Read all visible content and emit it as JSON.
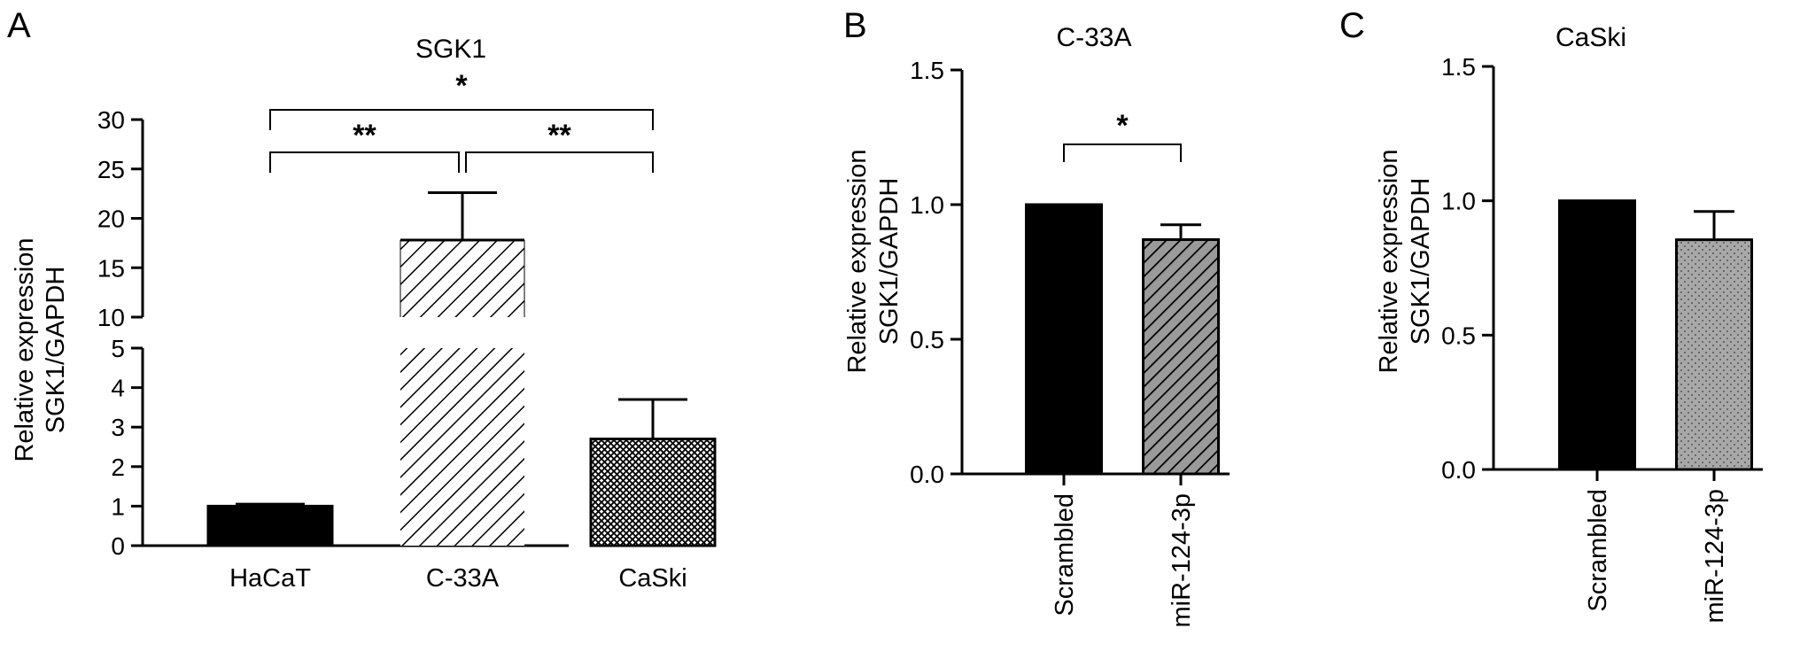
{
  "chart_data": [
    {
      "panel": "A",
      "type": "bar",
      "title": "SGK1",
      "ylabel": [
        "Relative expression",
        "SGK1/GAPDH"
      ],
      "categories": [
        "HaCaT",
        "C-33A",
        "CaSki"
      ],
      "values": [
        1.0,
        17.8,
        2.7
      ],
      "errors": [
        0.05,
        4.8,
        1.0
      ],
      "patterns": [
        "solid-black",
        "diagonal-hatch",
        "crosshatch"
      ],
      "y_axis_break": {
        "lower": [
          0,
          5
        ],
        "upper": [
          10,
          30
        ]
      },
      "yticks_lower": [
        0,
        1,
        2,
        3,
        4,
        5
      ],
      "yticks_upper": [
        10,
        15,
        20,
        25,
        30
      ],
      "grid": false,
      "significance": [
        {
          "from": "HaCaT",
          "to": "C-33A",
          "label": "**"
        },
        {
          "from": "C-33A",
          "to": "CaSki",
          "label": "**"
        },
        {
          "from": "HaCaT",
          "to": "CaSki",
          "label": "*"
        }
      ]
    },
    {
      "panel": "B",
      "type": "bar",
      "title": "C-33A",
      "ylabel": [
        "Relative expression",
        "SGK1/GAPDH"
      ],
      "categories": [
        "Scrambled",
        "miR-124-3p"
      ],
      "values": [
        1.0,
        0.87
      ],
      "errors": [
        0.003,
        0.055
      ],
      "patterns": [
        "solid-black",
        "dense-diagonal-gray"
      ],
      "ylim": [
        0,
        1.5
      ],
      "yticks": [
        "0.0",
        "0.5",
        "1.0",
        "1.5"
      ],
      "grid": false,
      "significance": [
        {
          "from": "Scrambled",
          "to": "miR-124-3p",
          "label": "*"
        }
      ]
    },
    {
      "panel": "C",
      "type": "bar",
      "title": "CaSki",
      "ylabel": [
        "Relative expression",
        "SGK1/GAPDH"
      ],
      "categories": [
        "Scrambled",
        "miR-124-3p"
      ],
      "values": [
        1.0,
        0.855
      ],
      "errors": [
        0.003,
        0.105
      ],
      "patterns": [
        "solid-black",
        "dotted-gray"
      ],
      "ylim": [
        0,
        1.5
      ],
      "yticks": [
        "0.0",
        "0.5",
        "1.0",
        "1.5"
      ],
      "grid": false,
      "significance": []
    }
  ]
}
